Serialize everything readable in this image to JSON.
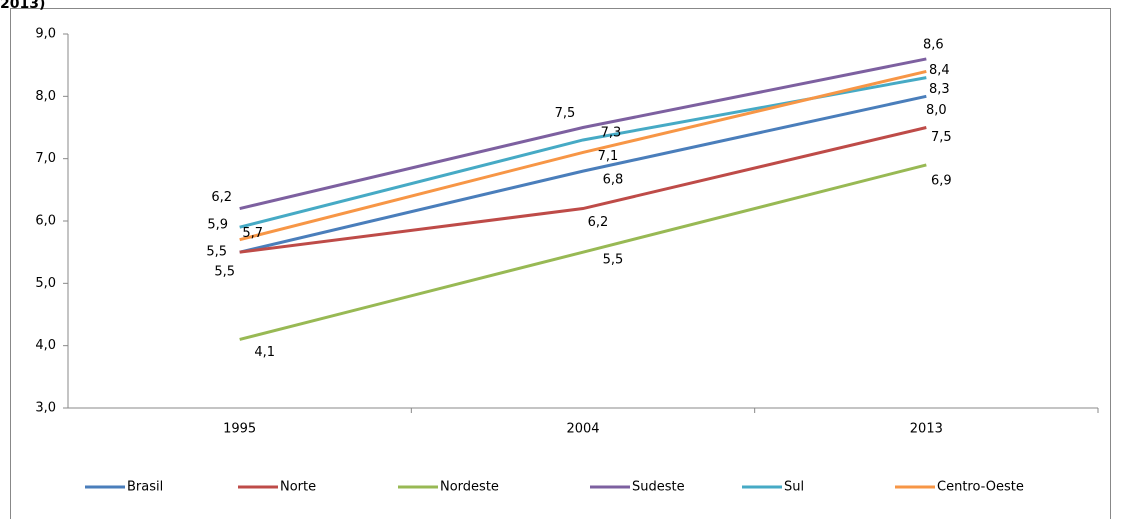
{
  "chart_data": {
    "type": "line",
    "title": "2013)",
    "categories": [
      "1995",
      "2004",
      "2013"
    ],
    "ylim": [
      3,
      9
    ],
    "yticks": [
      {
        "value": 3,
        "label": "3,0"
      },
      {
        "value": 4,
        "label": "4,0"
      },
      {
        "value": 5,
        "label": "5,0"
      },
      {
        "value": 6,
        "label": "6,0"
      },
      {
        "value": 7,
        "label": "7,0"
      },
      {
        "value": 8,
        "label": "8,0"
      },
      {
        "value": 9,
        "label": "9,0"
      }
    ],
    "legend": "bottom",
    "series": [
      {
        "name": "Brasil",
        "color": "#4a7ebb",
        "values": [
          5.5,
          6.8,
          8.0
        ],
        "value_labels": [
          "5,5",
          "6,8",
          "8,0"
        ]
      },
      {
        "name": "Norte",
        "color": "#be4b48",
        "values": [
          5.5,
          6.2,
          7.5
        ],
        "value_labels": [
          "5,5",
          "6,2",
          "7,5"
        ]
      },
      {
        "name": "Nordeste",
        "color": "#98b954",
        "values": [
          4.1,
          5.5,
          6.9
        ],
        "value_labels": [
          "4,1",
          "5,5",
          "6,9"
        ]
      },
      {
        "name": "Sudeste",
        "color": "#7d60a0",
        "values": [
          6.2,
          7.5,
          8.6
        ],
        "value_labels": [
          "6,2",
          "7,5",
          "8,6"
        ]
      },
      {
        "name": "Sul",
        "color": "#46aac5",
        "values": [
          5.9,
          7.3,
          8.3
        ],
        "value_labels": [
          "5,9",
          "7,3",
          "8,3"
        ]
      },
      {
        "name": "Centro-Oeste",
        "color": "#f79646",
        "values": [
          5.7,
          7.1,
          8.4
        ],
        "value_labels": [
          "5,7",
          "7,1",
          "8,4"
        ]
      }
    ]
  }
}
